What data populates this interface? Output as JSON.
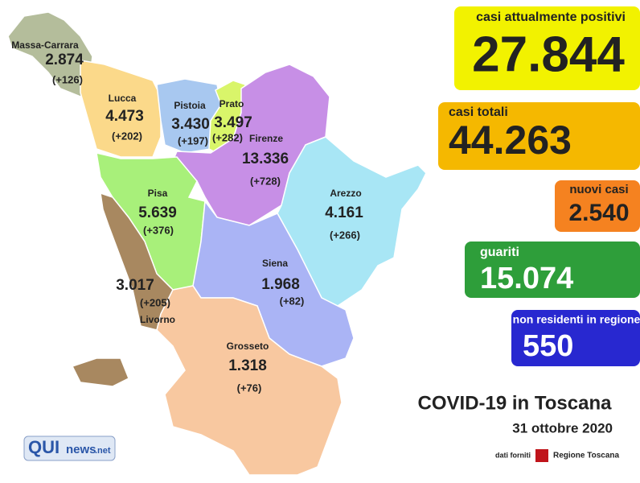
{
  "header": {
    "title": "COVID-19 in Toscana",
    "date": "31 ottobre 2020",
    "source_prefix": "dati forniti",
    "source": "Regione Toscana",
    "logo_a": "QUI",
    "logo_b": "news",
    "logo_c": ".net"
  },
  "stats": [
    {
      "label": "casi attualmente positivi",
      "value": "27.844"
    },
    {
      "label": "casi totali",
      "value": "44.263"
    },
    {
      "label": "nuovi casi",
      "value": "2.540"
    },
    {
      "label": "guariti",
      "value": "15.074"
    },
    {
      "label": "non residenti in regione",
      "value": "550"
    }
  ],
  "regions": [
    {
      "name": "Massa-Carrara",
      "value": "2.874",
      "change": "(+126)"
    },
    {
      "name": "Lucca",
      "value": "4.473",
      "change": "(+202)"
    },
    {
      "name": "Pistoia",
      "value": "3.430",
      "change": "(+197)"
    },
    {
      "name": "Prato",
      "value": "3.497",
      "change": "(+282)"
    },
    {
      "name": "Firenze",
      "value": "13.336",
      "change": "(+728)"
    },
    {
      "name": "Pisa",
      "value": "5.639",
      "change": "(+376)"
    },
    {
      "name": "Arezzo",
      "value": "4.161",
      "change": "(+266)"
    },
    {
      "name": "Livorno",
      "value": "3.017",
      "change": "(+205)"
    },
    {
      "name": "Siena",
      "value": "1.968",
      "change": "(+82)"
    },
    {
      "name": "Grosseto",
      "value": "1.318",
      "change": "(+76)"
    }
  ]
}
